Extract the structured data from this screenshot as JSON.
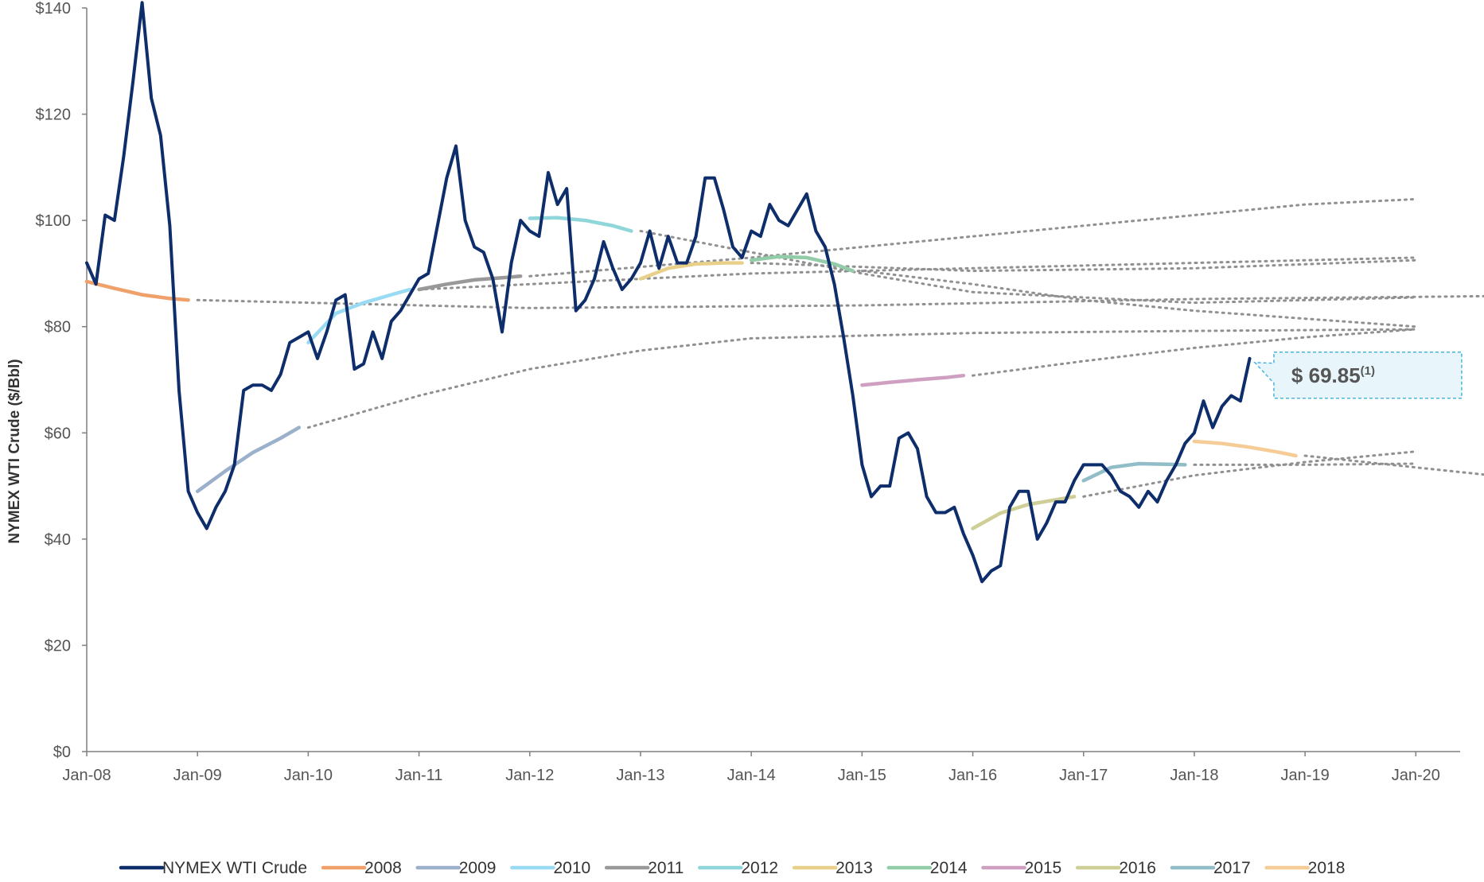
{
  "chart_data": {
    "type": "line",
    "title": "",
    "xlabel": "",
    "ylabel": "NYMEX WTI Crude ($/Bbl)",
    "x_range": [
      "2008-01",
      "2020-12"
    ],
    "ylim": [
      0,
      140
    ],
    "y_ticks": [
      0,
      20,
      40,
      60,
      80,
      100,
      120,
      140
    ],
    "y_tick_labels": [
      "$0",
      "$20",
      "$40",
      "$60",
      "$80",
      "$100",
      "$120",
      "$140"
    ],
    "x_ticks": [
      "2008-01",
      "2009-01",
      "2010-01",
      "2011-01",
      "2012-01",
      "2013-01",
      "2014-01",
      "2015-01",
      "2016-01",
      "2017-01",
      "2018-01",
      "2019-01",
      "2020-01"
    ],
    "x_tick_labels": [
      "Jan-08",
      "Jan-09",
      "Jan-10",
      "Jan-11",
      "Jan-12",
      "Jan-13",
      "Jan-14",
      "Jan-15",
      "Jan-16",
      "Jan-17",
      "Jan-18",
      "Jan-19",
      "Jan-20"
    ],
    "grid": false,
    "legend_position": "bottom",
    "callout": {
      "value": "$ 69.85",
      "superscript": "(1)",
      "anchor": {
        "x": "2018-06",
        "y": 74
      }
    },
    "series": [
      {
        "name": "NYMEX WTI Crude",
        "color": "#0e2d6b",
        "style": "solid",
        "points": [
          [
            "2008-01",
            92
          ],
          [
            "2008-02",
            88
          ],
          [
            "2008-03",
            101
          ],
          [
            "2008-04",
            100
          ],
          [
            "2008-05",
            112
          ],
          [
            "2008-06",
            126
          ],
          [
            "2008-07",
            141
          ],
          [
            "2008-08",
            123
          ],
          [
            "2008-09",
            116
          ],
          [
            "2008-10",
            99
          ],
          [
            "2008-11",
            68
          ],
          [
            "2008-12",
            49
          ],
          [
            "2009-01",
            45
          ],
          [
            "2009-02",
            42
          ],
          [
            "2009-03",
            46
          ],
          [
            "2009-04",
            49
          ],
          [
            "2009-05",
            54
          ],
          [
            "2009-06",
            68
          ],
          [
            "2009-07",
            69
          ],
          [
            "2009-08",
            69
          ],
          [
            "2009-09",
            68
          ],
          [
            "2009-10",
            71
          ],
          [
            "2009-11",
            77
          ],
          [
            "2009-12",
            78
          ],
          [
            "2010-01",
            79
          ],
          [
            "2010-02",
            74
          ],
          [
            "2010-03",
            79
          ],
          [
            "2010-04",
            85
          ],
          [
            "2010-05",
            86
          ],
          [
            "2010-06",
            72
          ],
          [
            "2010-07",
            73
          ],
          [
            "2010-08",
            79
          ],
          [
            "2010-09",
            74
          ],
          [
            "2010-10",
            81
          ],
          [
            "2010-11",
            83
          ],
          [
            "2010-12",
            86
          ],
          [
            "2011-01",
            89
          ],
          [
            "2011-02",
            90
          ],
          [
            "2011-03",
            99
          ],
          [
            "2011-04",
            108
          ],
          [
            "2011-05",
            114
          ],
          [
            "2011-06",
            100
          ],
          [
            "2011-07",
            95
          ],
          [
            "2011-08",
            94
          ],
          [
            "2011-09",
            89
          ],
          [
            "2011-10",
            79
          ],
          [
            "2011-11",
            92
          ],
          [
            "2011-12",
            100
          ],
          [
            "2012-01",
            98
          ],
          [
            "2012-02",
            97
          ],
          [
            "2012-03",
            109
          ],
          [
            "2012-04",
            103
          ],
          [
            "2012-05",
            106
          ],
          [
            "2012-06",
            83
          ],
          [
            "2012-07",
            85
          ],
          [
            "2012-08",
            89
          ],
          [
            "2012-09",
            96
          ],
          [
            "2012-10",
            91
          ],
          [
            "2012-11",
            87
          ],
          [
            "2012-12",
            89
          ],
          [
            "2013-01",
            92
          ],
          [
            "2013-02",
            98
          ],
          [
            "2013-03",
            91
          ],
          [
            "2013-04",
            97
          ],
          [
            "2013-05",
            92
          ],
          [
            "2013-06",
            92
          ],
          [
            "2013-07",
            97
          ],
          [
            "2013-08",
            108
          ],
          [
            "2013-09",
            108
          ],
          [
            "2013-10",
            102
          ],
          [
            "2013-11",
            95
          ],
          [
            "2013-12",
            93
          ],
          [
            "2014-01",
            98
          ],
          [
            "2014-02",
            97
          ],
          [
            "2014-03",
            103
          ],
          [
            "2014-04",
            100
          ],
          [
            "2014-05",
            99
          ],
          [
            "2014-06",
            102
          ],
          [
            "2014-07",
            105
          ],
          [
            "2014-08",
            98
          ],
          [
            "2014-09",
            95
          ],
          [
            "2014-10",
            88
          ],
          [
            "2014-11",
            78
          ],
          [
            "2014-12",
            67
          ],
          [
            "2015-01",
            54
          ],
          [
            "2015-02",
            48
          ],
          [
            "2015-03",
            50
          ],
          [
            "2015-04",
            50
          ],
          [
            "2015-05",
            59
          ],
          [
            "2015-06",
            60
          ],
          [
            "2015-07",
            57
          ],
          [
            "2015-08",
            48
          ],
          [
            "2015-09",
            45
          ],
          [
            "2015-10",
            45
          ],
          [
            "2015-11",
            46
          ],
          [
            "2015-12",
            41
          ],
          [
            "2016-01",
            37
          ],
          [
            "2016-02",
            32
          ],
          [
            "2016-03",
            34
          ],
          [
            "2016-04",
            35
          ],
          [
            "2016-05",
            46
          ],
          [
            "2016-06",
            49
          ],
          [
            "2016-07",
            49
          ],
          [
            "2016-08",
            40
          ],
          [
            "2016-09",
            43
          ],
          [
            "2016-10",
            47
          ],
          [
            "2016-11",
            47
          ],
          [
            "2016-12",
            51
          ],
          [
            "2017-01",
            54
          ],
          [
            "2017-02",
            54
          ],
          [
            "2017-03",
            54
          ],
          [
            "2017-04",
            52
          ],
          [
            "2017-05",
            49
          ],
          [
            "2017-06",
            48
          ],
          [
            "2017-07",
            46
          ],
          [
            "2017-08",
            49
          ],
          [
            "2017-09",
            47
          ],
          [
            "2017-10",
            51
          ],
          [
            "2017-11",
            54
          ],
          [
            "2017-12",
            58
          ],
          [
            "2018-01",
            60
          ],
          [
            "2018-02",
            66
          ],
          [
            "2018-03",
            61
          ],
          [
            "2018-04",
            65
          ],
          [
            "2018-05",
            67
          ],
          [
            "2018-06",
            66
          ],
          [
            "2018-07",
            74
          ]
        ]
      },
      {
        "name": "2008",
        "color": "#f0a06a",
        "style": "solid",
        "points": [
          [
            "2008-01",
            88.5
          ],
          [
            "2008-04",
            87.2
          ],
          [
            "2008-07",
            86
          ],
          [
            "2008-10",
            85.3
          ],
          [
            "2008-12",
            85
          ]
        ]
      },
      {
        "name": "2009",
        "color": "#9bb0cb",
        "style": "solid",
        "points": [
          [
            "2009-01",
            49
          ],
          [
            "2009-04",
            52.8
          ],
          [
            "2009-07",
            56.3
          ],
          [
            "2009-10",
            59
          ],
          [
            "2009-12",
            61
          ]
        ]
      },
      {
        "name": "2010",
        "color": "#99dbf2",
        "style": "solid",
        "points": [
          [
            "2010-01",
            77
          ],
          [
            "2010-04",
            82.5
          ],
          [
            "2010-07",
            84.5
          ],
          [
            "2010-10",
            86
          ],
          [
            "2010-12",
            87
          ]
        ]
      },
      {
        "name": "2011",
        "color": "#999999",
        "style": "solid",
        "points": [
          [
            "2011-01",
            87
          ],
          [
            "2011-04",
            88
          ],
          [
            "2011-07",
            88.8
          ],
          [
            "2011-10",
            89.2
          ],
          [
            "2011-12",
            89.5
          ]
        ]
      },
      {
        "name": "2012",
        "color": "#8fd6da",
        "style": "solid",
        "points": [
          [
            "2012-01",
            100.4
          ],
          [
            "2012-04",
            100.5
          ],
          [
            "2012-07",
            100
          ],
          [
            "2012-10",
            99
          ],
          [
            "2012-12",
            98
          ]
        ]
      },
      {
        "name": "2013",
        "color": "#e9d08a",
        "style": "solid",
        "points": [
          [
            "2013-01",
            89
          ],
          [
            "2013-04",
            91
          ],
          [
            "2013-07",
            91.8
          ],
          [
            "2013-10",
            92
          ],
          [
            "2013-12",
            92
          ]
        ]
      },
      {
        "name": "2014",
        "color": "#92cca8",
        "style": "solid",
        "points": [
          [
            "2014-01",
            92.5
          ],
          [
            "2014-04",
            93.2
          ],
          [
            "2014-07",
            93
          ],
          [
            "2014-10",
            91.8
          ],
          [
            "2014-12",
            90.5
          ]
        ]
      },
      {
        "name": "2015",
        "color": "#cf9fc1",
        "style": "solid",
        "points": [
          [
            "2015-01",
            69
          ],
          [
            "2015-04",
            69.5
          ],
          [
            "2015-07",
            70
          ],
          [
            "2015-10",
            70.4
          ],
          [
            "2015-12",
            70.8
          ]
        ]
      },
      {
        "name": "2016",
        "color": "#cdcf96",
        "style": "solid",
        "points": [
          [
            "2016-01",
            42
          ],
          [
            "2016-04",
            44.9
          ],
          [
            "2016-07",
            46.5
          ],
          [
            "2016-10",
            47.4
          ],
          [
            "2016-12",
            48
          ]
        ]
      },
      {
        "name": "2017",
        "color": "#90bdc8",
        "style": "solid",
        "points": [
          [
            "2017-01",
            51
          ],
          [
            "2017-04",
            53.5
          ],
          [
            "2017-07",
            54.2
          ],
          [
            "2017-10",
            54.1
          ],
          [
            "2017-12",
            54
          ]
        ]
      },
      {
        "name": "2018",
        "color": "#f5cc96",
        "style": "solid",
        "points": [
          [
            "2018-01",
            58.4
          ],
          [
            "2018-04",
            58
          ],
          [
            "2018-07",
            57.3
          ],
          [
            "2018-10",
            56.4
          ],
          [
            "2018-12",
            55.7
          ]
        ]
      }
    ],
    "forward_curves": [
      {
        "color": "#909090",
        "style": "dotted",
        "points": [
          [
            "2009-01",
            85
          ],
          [
            "2012-01",
            83.5
          ],
          [
            "2015-01",
            84
          ],
          [
            "2018-01",
            85.2
          ],
          [
            "2020-12",
            85.8
          ]
        ]
      },
      {
        "color": "#909090",
        "style": "dotted",
        "points": [
          [
            "2010-01",
            61
          ],
          [
            "2011-01",
            67
          ],
          [
            "2012-01",
            72
          ],
          [
            "2013-01",
            75.5
          ],
          [
            "2014-01",
            77.8
          ],
          [
            "2016-01",
            78.8
          ],
          [
            "2018-01",
            79.2
          ],
          [
            "2020-01",
            79.5
          ]
        ]
      },
      {
        "color": "#909090",
        "style": "dotted",
        "points": [
          [
            "2011-01",
            87
          ],
          [
            "2014-01",
            90
          ],
          [
            "2017-01",
            91.5
          ],
          [
            "2020-01",
            93
          ]
        ]
      },
      {
        "color": "#909090",
        "style": "dotted",
        "points": [
          [
            "2012-01",
            89.5
          ],
          [
            "2014-01",
            93
          ],
          [
            "2016-01",
            97
          ],
          [
            "2017-01",
            99
          ],
          [
            "2018-01",
            101
          ],
          [
            "2019-01",
            103
          ],
          [
            "2020-01",
            104
          ]
        ]
      },
      {
        "color": "#909090",
        "style": "dotted",
        "points": [
          [
            "2013-01",
            98
          ],
          [
            "2014-01",
            94
          ],
          [
            "2015-01",
            90
          ],
          [
            "2016-01",
            86.5
          ],
          [
            "2018-01",
            84.5
          ],
          [
            "2020-01",
            85.5
          ]
        ]
      },
      {
        "color": "#909090",
        "style": "dotted",
        "points": [
          [
            "2014-01",
            92
          ],
          [
            "2016-01",
            90.5
          ],
          [
            "2018-01",
            91
          ],
          [
            "2020-01",
            92.5
          ]
        ]
      },
      {
        "color": "#909090",
        "style": "dotted",
        "points": [
          [
            "2015-01",
            90.5
          ],
          [
            "2016-01",
            88
          ],
          [
            "2017-01",
            85
          ],
          [
            "2018-01",
            83
          ],
          [
            "2019-01",
            81.5
          ],
          [
            "2020-01",
            80
          ]
        ]
      },
      {
        "color": "#909090",
        "style": "dotted",
        "points": [
          [
            "2016-01",
            70.8
          ],
          [
            "2017-01",
            73.5
          ],
          [
            "2018-01",
            76
          ],
          [
            "2019-01",
            78
          ],
          [
            "2020-01",
            79.5
          ]
        ]
      },
      {
        "color": "#909090",
        "style": "dotted",
        "points": [
          [
            "2017-01",
            48
          ],
          [
            "2018-01",
            52
          ],
          [
            "2019-01",
            54.5
          ],
          [
            "2020-01",
            56.5
          ]
        ]
      },
      {
        "color": "#909090",
        "style": "dotted",
        "points": [
          [
            "2018-01",
            54
          ],
          [
            "2019-01",
            54
          ],
          [
            "2020-01",
            54.2
          ]
        ]
      },
      {
        "color": "#909090",
        "style": "dotted",
        "points": [
          [
            "2019-01",
            55.7
          ],
          [
            "2020-01",
            53.5
          ],
          [
            "2020-12",
            51.5
          ]
        ]
      }
    ]
  }
}
